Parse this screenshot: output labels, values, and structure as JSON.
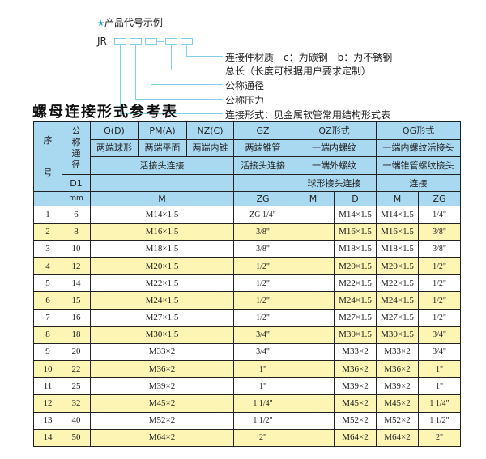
{
  "example": {
    "title": "产品代号示例",
    "prefix": "JR",
    "labels": [
      "连接件材质　c：为碳钢　b：为不锈钢",
      "总长（长度可根据用户要求定制）",
      "公称通径",
      "公称压力",
      "连接形式：见金属软管常用结构形式表"
    ]
  },
  "table_title": "螺母连接形式参考表",
  "header": {
    "seq": "序号",
    "dn": "公称通径",
    "d1": "D1",
    "mm": "mm",
    "q": "Q(D)",
    "pm": "PM(A)",
    "nz": "NZ(C)",
    "gz": "GZ",
    "qz": "QZ形式",
    "qg": "QG形式",
    "q2": "两端球形",
    "pm2": "两端平面",
    "nz2": "两端内锥",
    "gz2": "两端锥管",
    "qz2": "一端内螺纹",
    "qg2": "一端内螺纹活接头",
    "hj": "活接头连接",
    "gz3": "活接头连接",
    "qz3": "一端外螺纹",
    "qg3": "一端锥管螺纹接头",
    "qz4": "球形接头连接",
    "qg4": "连接",
    "m": "M",
    "zg": "ZG",
    "qzm": "M",
    "qzd": "D",
    "qgm": "M",
    "qgzg": "ZG"
  },
  "rows": [
    {
      "n": "1",
      "dn": "6",
      "m": "M14×1.5",
      "zg": "ZG 1/4\"",
      "d": "M14×1.5",
      "qgm": "M14×1.5",
      "qgzg": "1/4\""
    },
    {
      "n": "2",
      "dn": "8",
      "m": "M16×1.5",
      "zg": "3/8\"",
      "d": "M16×1.5",
      "qgm": "M16×1.5",
      "qgzg": "3/8\""
    },
    {
      "n": "3",
      "dn": "10",
      "m": "M18×1.5",
      "zg": "3/8\"",
      "d": "M18×1.5",
      "qgm": "M18×1.5",
      "qgzg": "3/8\""
    },
    {
      "n": "4",
      "dn": "12",
      "m": "M20×1.5",
      "zg": "1/2\"",
      "d": "M20×1.5",
      "qgm": "M20×1.5",
      "qgzg": "1/2\""
    },
    {
      "n": "5",
      "dn": "14",
      "m": "M22×1.5",
      "zg": "1/2\"",
      "d": "M22×1.5",
      "qgm": "M22×1.5",
      "qgzg": "1/2\""
    },
    {
      "n": "6",
      "dn": "15",
      "m": "M24×1.5",
      "zg": "1/2\"",
      "d": "M24×1.5",
      "qgm": "M24×1.5",
      "qgzg": "1/2\""
    },
    {
      "n": "7",
      "dn": "16",
      "m": "M27×1.5",
      "zg": "1/2\"",
      "d": "M27×1.5",
      "qgm": "M27×1.5",
      "qgzg": "1/2\""
    },
    {
      "n": "8",
      "dn": "18",
      "m": "M30×1.5",
      "zg": "3/4\"",
      "d": "M30×1.5",
      "qgm": "M30×1.5",
      "qgzg": "3/4\""
    },
    {
      "n": "9",
      "dn": "20",
      "m": "M33×2",
      "zg": "3/4\"",
      "d": "M33×2",
      "qgm": "M33×2",
      "qgzg": "3/4\""
    },
    {
      "n": "10",
      "dn": "22",
      "m": "M36×2",
      "zg": "1\"",
      "d": "M36×2",
      "qgm": "M36×2",
      "qgzg": "1\""
    },
    {
      "n": "11",
      "dn": "25",
      "m": "M39×2",
      "zg": "1\"",
      "d": "M39×2",
      "qgm": "M39×2",
      "qgzg": "1\""
    },
    {
      "n": "12",
      "dn": "32",
      "m": "M45×2",
      "zg": "1 1/4\"",
      "d": "M45×2",
      "qgm": "M45×2",
      "qgzg": "1 1/4\""
    },
    {
      "n": "13",
      "dn": "40",
      "m": "M52×2",
      "zg": "1 1/2\"",
      "d": "M52×2",
      "qgm": "M52×2",
      "qgzg": "1 1/2\""
    },
    {
      "n": "14",
      "dn": "50",
      "m": "M64×2",
      "zg": "2\"",
      "d": "M64×2",
      "qgm": "M64×2",
      "qgzg": "2\""
    }
  ],
  "colors": {
    "header": "#a9d9f1",
    "alt_row": "#fcf5b4",
    "accent": "#1fa3d8"
  }
}
